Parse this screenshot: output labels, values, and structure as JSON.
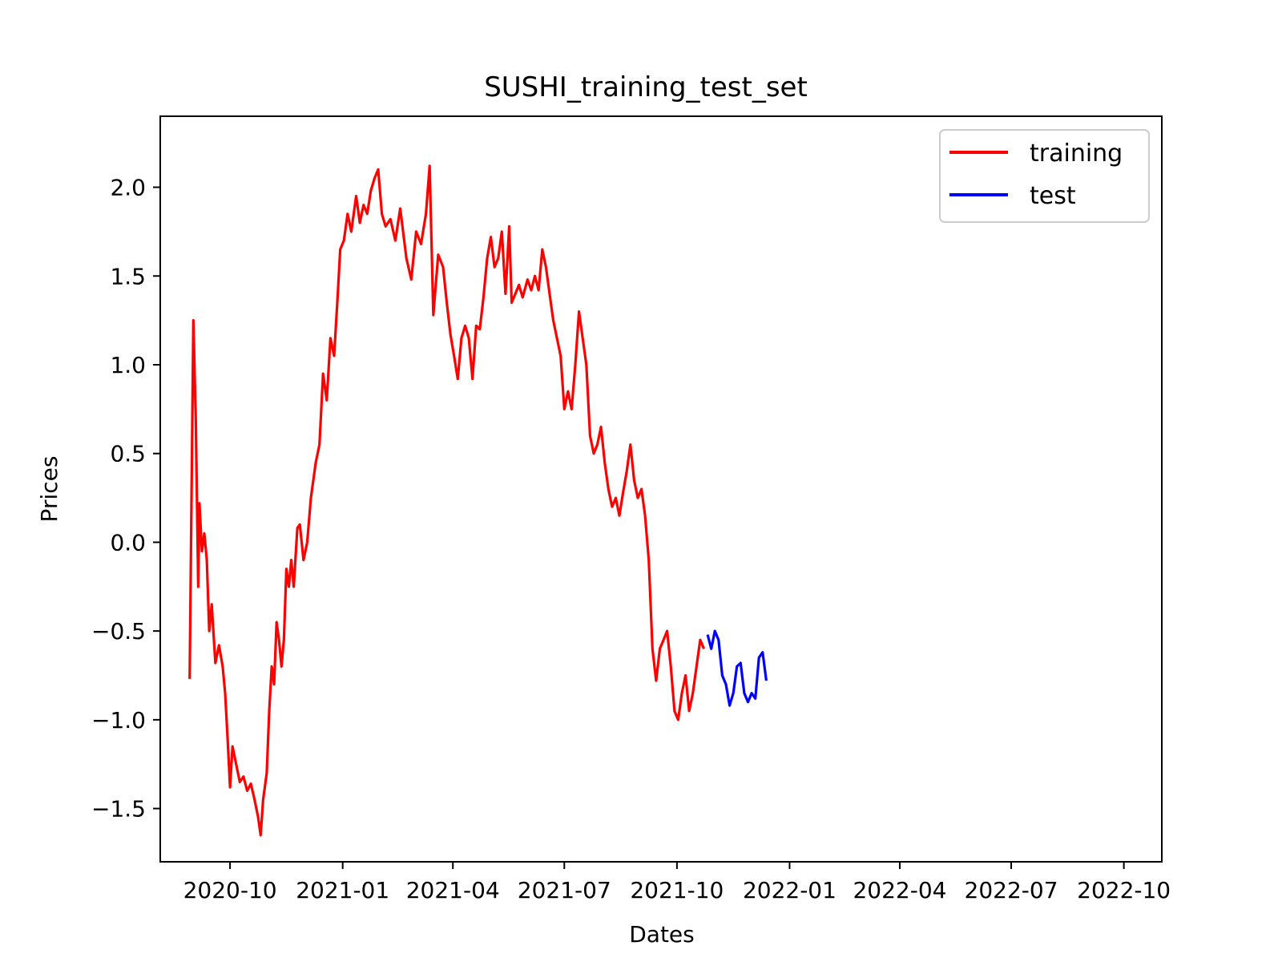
{
  "chart_data": {
    "type": "line",
    "title": "SUSHI_training_test_set",
    "xlabel": "Dates",
    "ylabel": "Prices",
    "x_type": "date",
    "xlim": [
      "2020-08-05",
      "2022-11-01"
    ],
    "ylim": [
      -1.8,
      2.4
    ],
    "x_ticks": [
      "2020-10-01",
      "2021-01-01",
      "2021-04-01",
      "2021-07-01",
      "2021-10-01",
      "2022-01-01",
      "2022-04-01",
      "2022-07-01",
      "2022-10-01"
    ],
    "x_tick_labels": [
      "2020-10",
      "2021-01",
      "2021-04",
      "2021-07",
      "2021-10",
      "2022-01",
      "2022-04",
      "2022-07",
      "2022-10"
    ],
    "y_ticks": [
      -1.5,
      -1.0,
      -0.5,
      0.0,
      0.5,
      1.0,
      1.5,
      2.0
    ],
    "y_tick_labels": [
      "−1.5",
      "−1.0",
      "−0.5",
      "0.0",
      "0.5",
      "1.0",
      "1.5",
      "2.0"
    ],
    "grid": false,
    "legend": "top-right",
    "series": [
      {
        "name": "training",
        "color": "#ff0000",
        "points": [
          [
            "2020-08-29",
            -0.77
          ],
          [
            "2020-09-01",
            1.25
          ],
          [
            "2020-09-03",
            0.7
          ],
          [
            "2020-09-05",
            -0.25
          ],
          [
            "2020-09-06",
            0.22
          ],
          [
            "2020-09-08",
            -0.05
          ],
          [
            "2020-09-10",
            0.05
          ],
          [
            "2020-09-12",
            -0.1
          ],
          [
            "2020-09-14",
            -0.5
          ],
          [
            "2020-09-16",
            -0.35
          ],
          [
            "2020-09-19",
            -0.68
          ],
          [
            "2020-09-22",
            -0.58
          ],
          [
            "2020-09-25",
            -0.7
          ],
          [
            "2020-09-27",
            -0.85
          ],
          [
            "2020-09-29",
            -1.1
          ],
          [
            "2020-10-01",
            -1.38
          ],
          [
            "2020-10-03",
            -1.15
          ],
          [
            "2020-10-06",
            -1.25
          ],
          [
            "2020-10-09",
            -1.35
          ],
          [
            "2020-10-12",
            -1.32
          ],
          [
            "2020-10-15",
            -1.4
          ],
          [
            "2020-10-18",
            -1.36
          ],
          [
            "2020-10-21",
            -1.45
          ],
          [
            "2020-10-24",
            -1.55
          ],
          [
            "2020-10-26",
            -1.65
          ],
          [
            "2020-10-28",
            -1.45
          ],
          [
            "2020-10-31",
            -1.3
          ],
          [
            "2020-11-02",
            -0.95
          ],
          [
            "2020-11-04",
            -0.7
          ],
          [
            "2020-11-06",
            -0.8
          ],
          [
            "2020-11-08",
            -0.45
          ],
          [
            "2020-11-10",
            -0.55
          ],
          [
            "2020-11-12",
            -0.7
          ],
          [
            "2020-11-14",
            -0.55
          ],
          [
            "2020-11-16",
            -0.15
          ],
          [
            "2020-11-18",
            -0.25
          ],
          [
            "2020-11-20",
            -0.1
          ],
          [
            "2020-11-22",
            -0.25
          ],
          [
            "2020-11-25",
            0.08
          ],
          [
            "2020-11-27",
            0.1
          ],
          [
            "2020-11-30",
            -0.1
          ],
          [
            "2020-12-03",
            0.0
          ],
          [
            "2020-12-06",
            0.25
          ],
          [
            "2020-12-10",
            0.45
          ],
          [
            "2020-12-13",
            0.55
          ],
          [
            "2020-12-16",
            0.95
          ],
          [
            "2020-12-19",
            0.8
          ],
          [
            "2020-12-22",
            1.15
          ],
          [
            "2020-12-25",
            1.05
          ],
          [
            "2020-12-28",
            1.4
          ],
          [
            "2020-12-30",
            1.65
          ],
          [
            "2021-01-02",
            1.7
          ],
          [
            "2021-01-05",
            1.85
          ],
          [
            "2021-01-08",
            1.75
          ],
          [
            "2021-01-12",
            1.95
          ],
          [
            "2021-01-15",
            1.8
          ],
          [
            "2021-01-18",
            1.9
          ],
          [
            "2021-01-21",
            1.85
          ],
          [
            "2021-01-24",
            1.98
          ],
          [
            "2021-01-27",
            2.05
          ],
          [
            "2021-01-30",
            2.1
          ],
          [
            "2021-02-02",
            1.85
          ],
          [
            "2021-02-05",
            1.78
          ],
          [
            "2021-02-09",
            1.82
          ],
          [
            "2021-02-13",
            1.7
          ],
          [
            "2021-02-17",
            1.88
          ],
          [
            "2021-02-22",
            1.6
          ],
          [
            "2021-02-26",
            1.48
          ],
          [
            "2021-03-02",
            1.75
          ],
          [
            "2021-03-06",
            1.68
          ],
          [
            "2021-03-10",
            1.85
          ],
          [
            "2021-03-13",
            2.12
          ],
          [
            "2021-03-16",
            1.28
          ],
          [
            "2021-03-20",
            1.62
          ],
          [
            "2021-03-24",
            1.55
          ],
          [
            "2021-03-27",
            1.35
          ],
          [
            "2021-03-30",
            1.17
          ],
          [
            "2021-04-02",
            1.05
          ],
          [
            "2021-04-05",
            0.92
          ],
          [
            "2021-04-08",
            1.15
          ],
          [
            "2021-04-11",
            1.22
          ],
          [
            "2021-04-14",
            1.15
          ],
          [
            "2021-04-17",
            0.92
          ],
          [
            "2021-04-20",
            1.22
          ],
          [
            "2021-04-23",
            1.2
          ],
          [
            "2021-04-26",
            1.38
          ],
          [
            "2021-04-29",
            1.6
          ],
          [
            "2021-05-02",
            1.72
          ],
          [
            "2021-05-05",
            1.55
          ],
          [
            "2021-05-08",
            1.6
          ],
          [
            "2021-05-11",
            1.75
          ],
          [
            "2021-05-14",
            1.4
          ],
          [
            "2021-05-17",
            1.78
          ],
          [
            "2021-05-19",
            1.35
          ],
          [
            "2021-05-22",
            1.4
          ],
          [
            "2021-05-25",
            1.45
          ],
          [
            "2021-05-28",
            1.38
          ],
          [
            "2021-06-01",
            1.48
          ],
          [
            "2021-06-04",
            1.42
          ],
          [
            "2021-06-07",
            1.5
          ],
          [
            "2021-06-10",
            1.42
          ],
          [
            "2021-06-13",
            1.65
          ],
          [
            "2021-06-16",
            1.55
          ],
          [
            "2021-06-19",
            1.4
          ],
          [
            "2021-06-22",
            1.25
          ],
          [
            "2021-06-25",
            1.15
          ],
          [
            "2021-06-28",
            1.05
          ],
          [
            "2021-07-01",
            0.75
          ],
          [
            "2021-07-04",
            0.85
          ],
          [
            "2021-07-07",
            0.75
          ],
          [
            "2021-07-10",
            1.0
          ],
          [
            "2021-07-13",
            1.3
          ],
          [
            "2021-07-16",
            1.15
          ],
          [
            "2021-07-19",
            1.0
          ],
          [
            "2021-07-22",
            0.6
          ],
          [
            "2021-07-25",
            0.5
          ],
          [
            "2021-07-28",
            0.55
          ],
          [
            "2021-07-31",
            0.65
          ],
          [
            "2021-08-03",
            0.45
          ],
          [
            "2021-08-06",
            0.3
          ],
          [
            "2021-08-09",
            0.2
          ],
          [
            "2021-08-12",
            0.25
          ],
          [
            "2021-08-15",
            0.15
          ],
          [
            "2021-08-18",
            0.28
          ],
          [
            "2021-08-21",
            0.4
          ],
          [
            "2021-08-24",
            0.55
          ],
          [
            "2021-08-27",
            0.35
          ],
          [
            "2021-08-30",
            0.25
          ],
          [
            "2021-09-02",
            0.3
          ],
          [
            "2021-09-05",
            0.15
          ],
          [
            "2021-09-08",
            -0.1
          ],
          [
            "2021-09-11",
            -0.6
          ],
          [
            "2021-09-14",
            -0.78
          ],
          [
            "2021-09-17",
            -0.6
          ],
          [
            "2021-09-20",
            -0.55
          ],
          [
            "2021-09-23",
            -0.5
          ],
          [
            "2021-09-26",
            -0.7
          ],
          [
            "2021-09-29",
            -0.95
          ],
          [
            "2021-10-02",
            -1.0
          ],
          [
            "2021-10-05",
            -0.85
          ],
          [
            "2021-10-08",
            -0.75
          ],
          [
            "2021-10-11",
            -0.95
          ],
          [
            "2021-10-14",
            -0.85
          ],
          [
            "2021-10-17",
            -0.7
          ],
          [
            "2021-10-20",
            -0.55
          ],
          [
            "2021-10-23",
            -0.6
          ]
        ]
      },
      {
        "name": "test",
        "color": "#0000ff",
        "points": [
          [
            "2021-10-26",
            -0.52
          ],
          [
            "2021-10-29",
            -0.6
          ],
          [
            "2021-11-01",
            -0.5
          ],
          [
            "2021-11-04",
            -0.55
          ],
          [
            "2021-11-07",
            -0.75
          ],
          [
            "2021-11-10",
            -0.8
          ],
          [
            "2021-11-13",
            -0.92
          ],
          [
            "2021-11-16",
            -0.85
          ],
          [
            "2021-11-19",
            -0.7
          ],
          [
            "2021-11-22",
            -0.68
          ],
          [
            "2021-11-25",
            -0.85
          ],
          [
            "2021-11-28",
            -0.9
          ],
          [
            "2021-12-01",
            -0.85
          ],
          [
            "2021-12-04",
            -0.88
          ],
          [
            "2021-12-07",
            -0.65
          ],
          [
            "2021-12-10",
            -0.62
          ],
          [
            "2021-12-13",
            -0.78
          ]
        ]
      }
    ]
  }
}
